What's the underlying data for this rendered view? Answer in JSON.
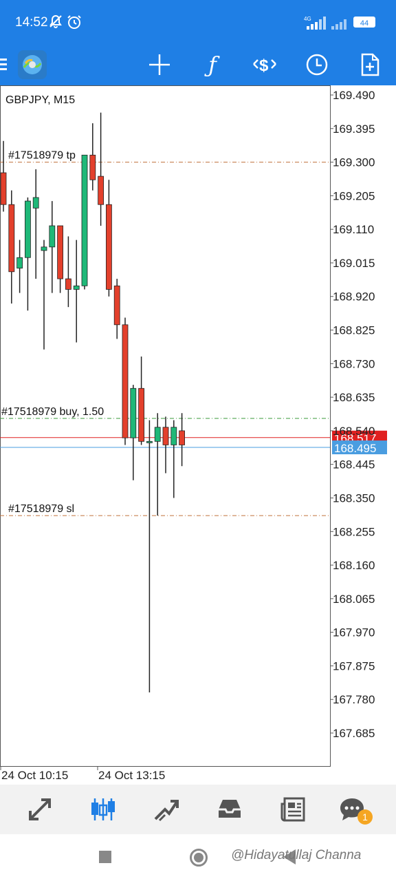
{
  "status_bar": {
    "time": "14:52",
    "icons": [
      "bell-off-icon",
      "alarm-icon",
      "signal-4g-icon",
      "signal-icon"
    ],
    "network_label": "4G",
    "battery": "44"
  },
  "toolbar": {
    "menu_icon": "menu-icon",
    "logo_icon": "metatrader-logo-icon",
    "buttons": [
      "crosshair-icon",
      "indicators-icon",
      "symbols-icon",
      "timeframe-icon",
      "new-order-icon"
    ]
  },
  "chart": {
    "symbol_label": "GBPJPY, M15",
    "price_axis": [
      "169.490",
      "169.395",
      "169.300",
      "169.205",
      "169.110",
      "169.015",
      "168.920",
      "168.825",
      "168.730",
      "168.635",
      "168.540",
      "168.445",
      "168.350",
      "168.255",
      "168.160",
      "168.065",
      "167.970",
      "167.875",
      "167.780",
      "167.685"
    ],
    "time_axis": [
      "24 Oct 10:15",
      "24 Oct 13:15"
    ],
    "levels": {
      "tp": {
        "label": "#17518979 tp",
        "price": 169.3,
        "color": "#c0703a"
      },
      "entry": {
        "label": "#17518979 buy, 1.50",
        "price": 168.575,
        "color": "#3a9a3a"
      },
      "sl": {
        "label": "#17518979 sl",
        "price": 168.3,
        "color": "#c0703a"
      },
      "bid": {
        "price_label": "168.517",
        "price": 168.517,
        "color": "#e02020"
      },
      "ask": {
        "price_label": "168.495",
        "price": 168.495,
        "color": "#4a9de0"
      }
    },
    "colors": {
      "bull": "#1fb878",
      "bear": "#e3402c",
      "wick": "#222222"
    }
  },
  "chart_data": {
    "type": "candlestick",
    "symbol": "GBPJPY",
    "timeframe": "M15",
    "candles": [
      {
        "o": 169.27,
        "h": 169.36,
        "l": 169.16,
        "c": 169.18
      },
      {
        "o": 169.18,
        "h": 169.22,
        "l": 168.9,
        "c": 168.99
      },
      {
        "o": 169.0,
        "h": 169.08,
        "l": 168.93,
        "c": 169.03
      },
      {
        "o": 169.03,
        "h": 169.2,
        "l": 168.88,
        "c": 169.19
      },
      {
        "o": 169.17,
        "h": 169.28,
        "l": 168.97,
        "c": 169.2
      },
      {
        "o": 169.05,
        "h": 169.08,
        "l": 168.77,
        "c": 169.06
      },
      {
        "o": 169.06,
        "h": 169.19,
        "l": 168.93,
        "c": 169.12
      },
      {
        "o": 169.12,
        "h": 169.12,
        "l": 168.93,
        "c": 168.97
      },
      {
        "o": 168.97,
        "h": 169.09,
        "l": 168.89,
        "c": 168.94
      },
      {
        "o": 168.94,
        "h": 169.08,
        "l": 168.79,
        "c": 168.95
      },
      {
        "o": 168.95,
        "h": 169.32,
        "l": 168.94,
        "c": 169.32
      },
      {
        "o": 169.32,
        "h": 169.41,
        "l": 169.22,
        "c": 169.25
      },
      {
        "o": 169.26,
        "h": 169.44,
        "l": 169.12,
        "c": 169.18
      },
      {
        "o": 169.18,
        "h": 169.25,
        "l": 168.92,
        "c": 168.94
      },
      {
        "o": 168.95,
        "h": 168.97,
        "l": 168.8,
        "c": 168.84
      },
      {
        "o": 168.84,
        "h": 168.86,
        "l": 168.5,
        "c": 168.52
      },
      {
        "o": 168.52,
        "h": 168.67,
        "l": 168.4,
        "c": 168.66
      },
      {
        "o": 168.66,
        "h": 168.75,
        "l": 168.5,
        "c": 168.51
      },
      {
        "o": 168.51,
        "h": 168.57,
        "l": 167.8,
        "c": 168.51
      },
      {
        "o": 168.51,
        "h": 168.59,
        "l": 168.3,
        "c": 168.55
      },
      {
        "o": 168.55,
        "h": 168.58,
        "l": 168.42,
        "c": 168.5
      },
      {
        "o": 168.5,
        "h": 168.57,
        "l": 168.35,
        "c": 168.55
      },
      {
        "o": 168.54,
        "h": 168.59,
        "l": 168.44,
        "c": 168.5
      }
    ],
    "ylim": [
      167.64,
      169.52
    ]
  },
  "bottom_nav": {
    "items": [
      "quotes-icon",
      "chart-icon",
      "trade-icon",
      "history-icon",
      "news-icon",
      "chat-icon"
    ],
    "chat_badge": "1"
  },
  "system_nav": {
    "icons": [
      "recents-icon",
      "home-icon",
      "back-icon"
    ],
    "watermark": "@Hidayatullaj Channa"
  }
}
